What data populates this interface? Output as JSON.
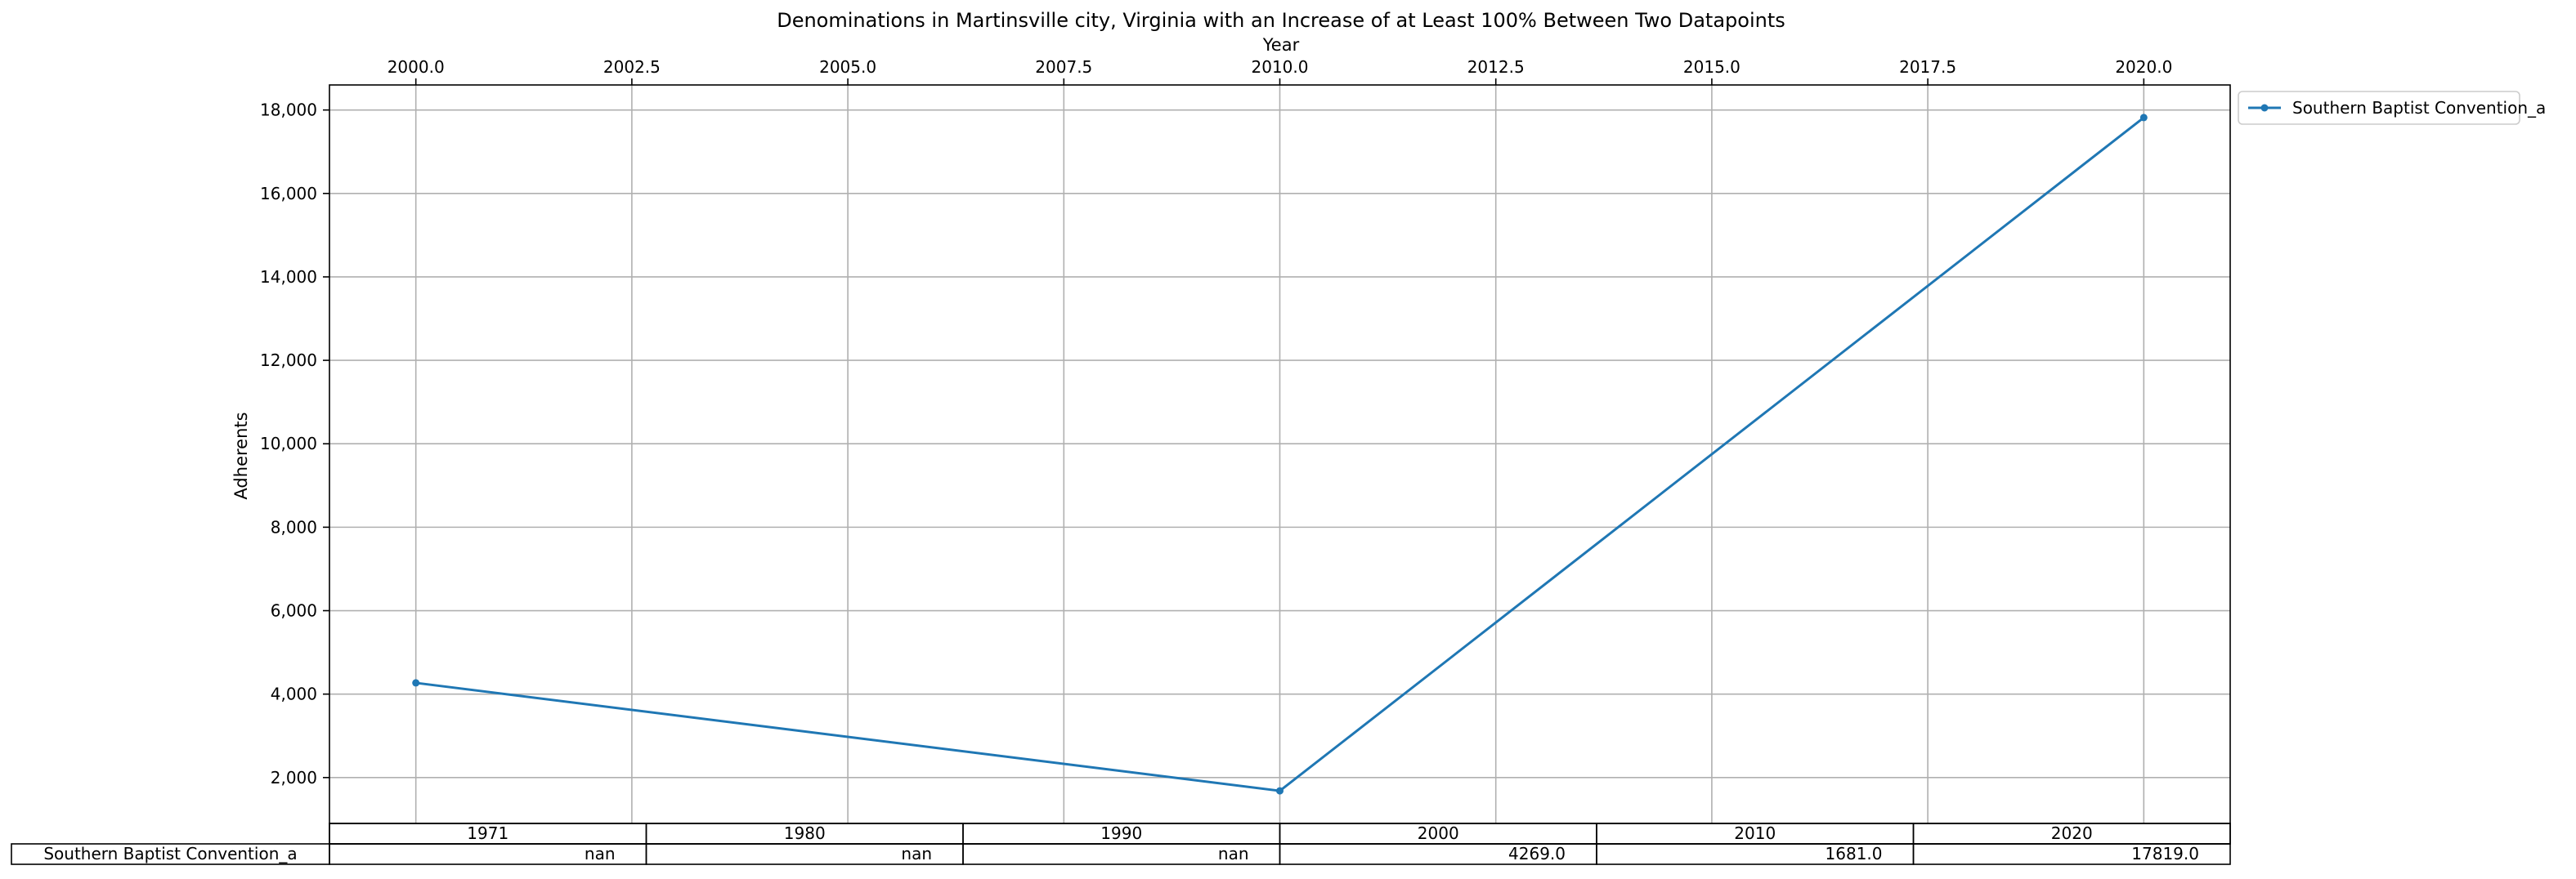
{
  "chart_data": {
    "type": "line",
    "title": "Denominations in Martinsville city, Virginia with an Increase of at Least 100% Between Two Datapoints",
    "xlabel": "Year",
    "ylabel": "Adherents",
    "x_axis_position": "top",
    "xlim": [
      1999.0,
      2021.0
    ],
    "ylim": [
      900,
      18600
    ],
    "xticks": [
      2000.0,
      2002.5,
      2005.0,
      2007.5,
      2010.0,
      2012.5,
      2015.0,
      2017.5,
      2020.0
    ],
    "xtick_labels": [
      "2000.0",
      "2002.5",
      "2005.0",
      "2007.5",
      "2010.0",
      "2012.5",
      "2015.0",
      "2017.5",
      "2020.0"
    ],
    "yticks": [
      2000,
      4000,
      6000,
      8000,
      10000,
      12000,
      14000,
      16000,
      18000
    ],
    "ytick_labels": [
      "2,000",
      "4,000",
      "6,000",
      "8,000",
      "10,000",
      "12,000",
      "14,000",
      "16,000",
      "18,000"
    ],
    "grid": true,
    "legend_position": "outside-top-right",
    "series": [
      {
        "name": "Southern Baptist Convention_a",
        "color": "#1f77b4",
        "x": [
          2000,
          2010,
          2020
        ],
        "y": [
          4269,
          1681,
          17819
        ]
      }
    ],
    "table": {
      "columns": [
        "1971",
        "1980",
        "1990",
        "2000",
        "2010",
        "2020"
      ],
      "rows": [
        {
          "label": "Southern Baptist Convention_a",
          "cells": [
            "nan",
            "nan",
            "nan",
            "4269.0",
            "1681.0",
            "17819.0"
          ]
        }
      ]
    }
  }
}
